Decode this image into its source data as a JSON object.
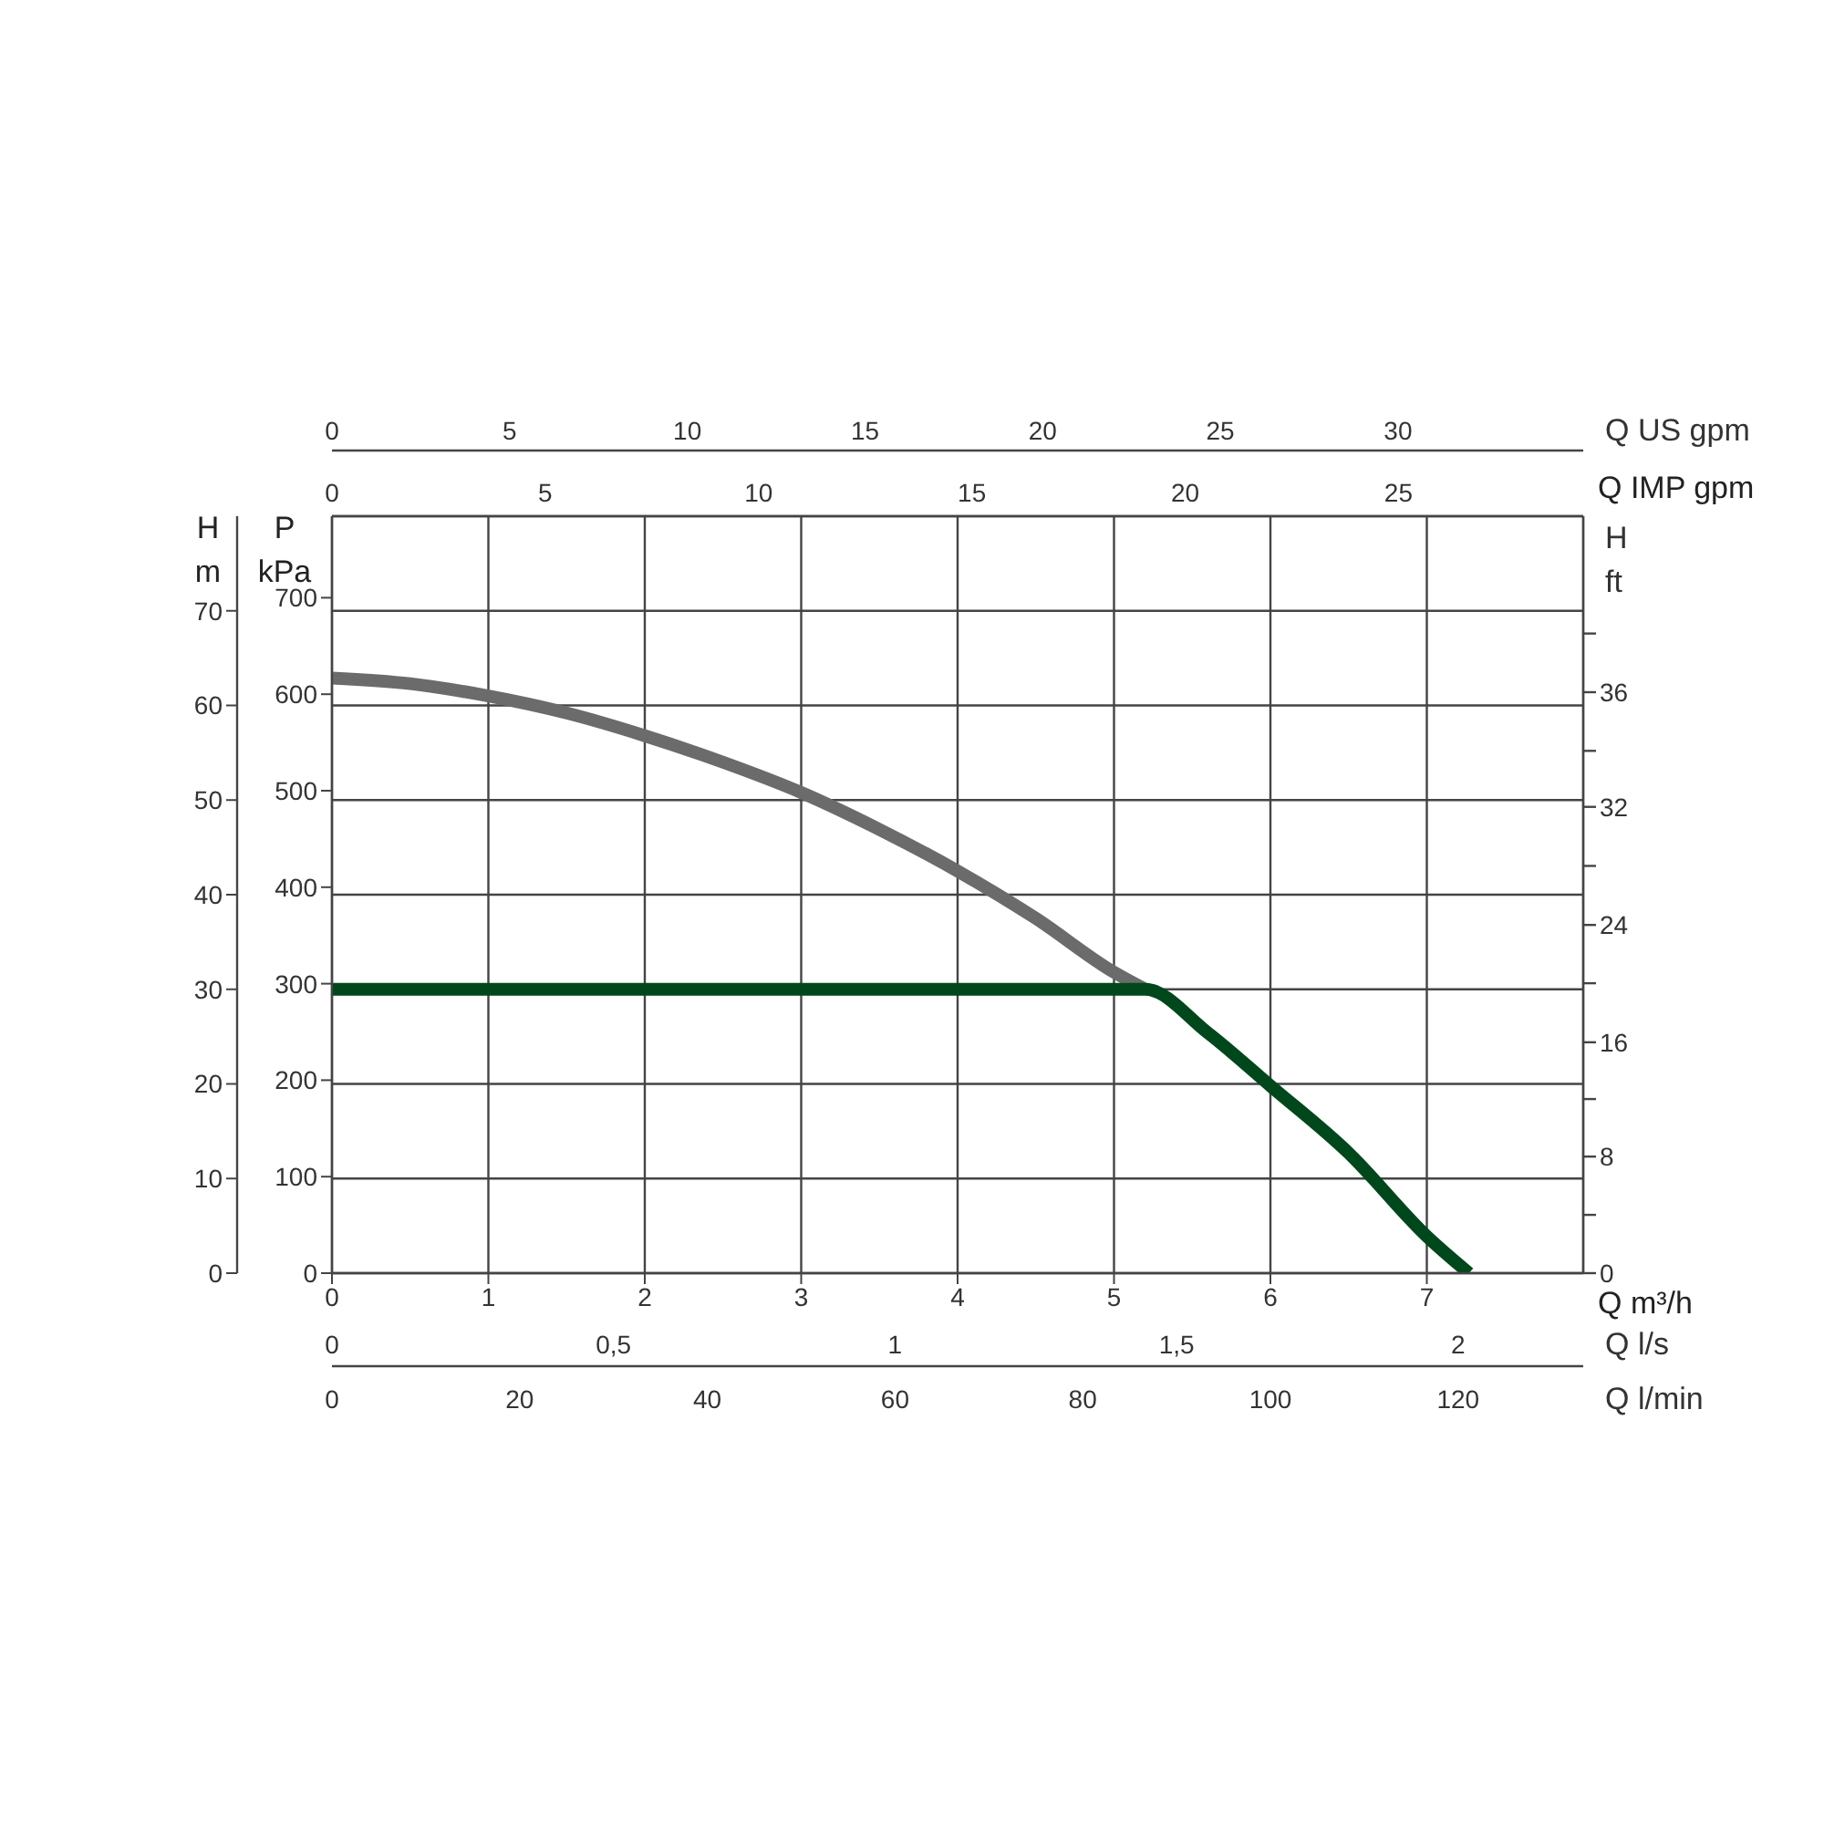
{
  "chart_data": {
    "type": "line",
    "xlabel": "Q m³/h",
    "ylabel": "H m",
    "y3label": "P kPa",
    "x2label": "Q IMP gpm",
    "xlim": [
      0,
      8
    ],
    "xticks": [
      0,
      1,
      2,
      3,
      4,
      5,
      6,
      7
    ],
    "x2lim": [
      0,
      29.33
    ],
    "x2ticks": [
      0,
      5,
      10,
      15,
      20,
      25
    ],
    "ylim": [
      0,
      80
    ],
    "yticks": [
      0,
      10,
      20,
      30,
      40,
      50,
      60,
      70
    ],
    "y3lim": [
      0,
      784.5
    ],
    "y3ticks": [
      0,
      100,
      200,
      300,
      400,
      500,
      600,
      700
    ],
    "grid": true,
    "annotations": [
      "0",
      "5",
      "10",
      "15",
      "20",
      "25",
      "30",
      "Q US gpm",
      "0",
      "0,5",
      "1",
      "1,5",
      "2",
      "Q l/s",
      "0",
      "20",
      "40",
      "60",
      "80",
      "100",
      "120",
      "Q l/min",
      "H",
      "ft",
      "0",
      "8",
      "16",
      "24",
      "32",
      "36"
    ],
    "series": [
      {
        "color": "#6b6b6b",
        "x": [
          0,
          0.5,
          1,
          1.5,
          2,
          2.5,
          3,
          3.5,
          4,
          4.5,
          5,
          5.2
        ],
        "values": [
          62.9,
          62.3,
          61,
          59.2,
          56.8,
          54,
          50.8,
          46.9,
          42.5,
          37.5,
          31.8,
          30
        ]
      },
      {
        "color": "#00471b",
        "x": [
          0,
          5.2,
          5.6,
          6,
          6.5,
          7,
          7.27
        ],
        "values": [
          30,
          30,
          25.4,
          19.8,
          12.7,
          3.9,
          0
        ]
      }
    ]
  }
}
